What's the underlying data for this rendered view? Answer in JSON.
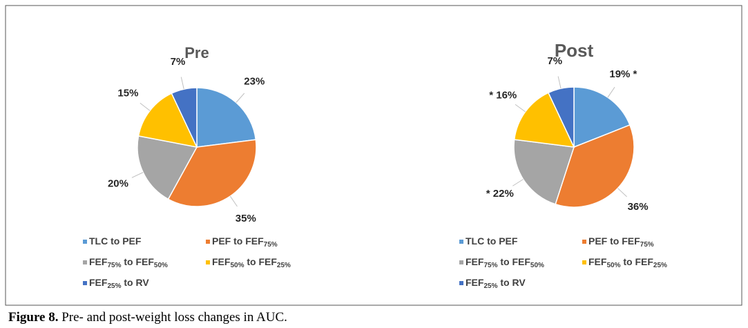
{
  "chart_data": [
    {
      "type": "pie",
      "title": "Pre",
      "categories": [
        "TLC to PEF",
        "PEF to FEF75%",
        "FEF75% to FEF50%",
        "FEF50% to FEF25%",
        "FEF25% to RV"
      ],
      "values": [
        23,
        35,
        20,
        15,
        7
      ],
      "value_labels": [
        "23%",
        "35%",
        "20%",
        "15%",
        "7%"
      ],
      "colors": [
        "#5b9bd5",
        "#ed7d31",
        "#a5a5a5",
        "#ffc000",
        "#4472c4"
      ],
      "legend": "bottom"
    },
    {
      "type": "pie",
      "title": "Post",
      "categories": [
        "TLC to PEF",
        "PEF to FEF75%",
        "FEF75% to FEF50%",
        "FEF50% to FEF25%",
        "FEF25% to RV"
      ],
      "values": [
        19,
        36,
        22,
        16,
        7
      ],
      "value_labels": [
        "19% *",
        "36%",
        "* 22%",
        "* 16%",
        "7%"
      ],
      "colors": [
        "#5b9bd5",
        "#ed7d31",
        "#a5a5a5",
        "#ffc000",
        "#4472c4"
      ],
      "legend": "bottom"
    }
  ],
  "caption": {
    "label": "Figure 8.",
    "text": "Pre- and post-weight loss changes in AUC."
  }
}
